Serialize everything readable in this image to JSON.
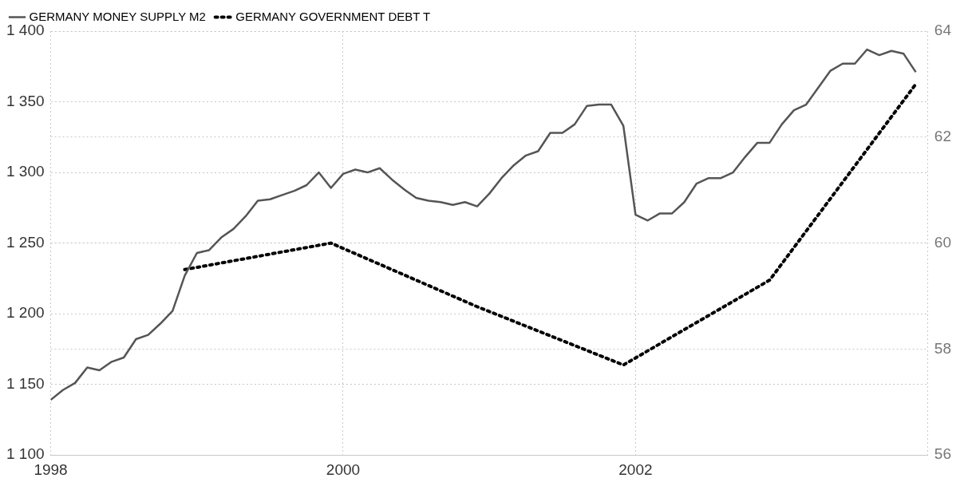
{
  "chart_data": {
    "type": "line",
    "xlim": [
      "1998",
      "2004"
    ],
    "xticks": [
      "1998",
      "2000",
      "2002",
      {
        "value": "2004",
        "label": null
      }
    ],
    "ylim": [
      1100,
      1400
    ],
    "yticks": [
      {
        "value": 1100,
        "label": "1 100"
      },
      {
        "value": 1150,
        "label": "1 150"
      },
      {
        "value": 1200,
        "label": "1 200"
      },
      {
        "value": 1250,
        "label": "1 250"
      },
      {
        "value": 1300,
        "label": "1 300"
      },
      {
        "value": 1350,
        "label": "1 350"
      },
      {
        "value": 1400,
        "label": "1 400"
      }
    ],
    "y2lim": [
      56,
      64
    ],
    "y2ticks": [
      56,
      58,
      60,
      62,
      64
    ],
    "grid": true,
    "legend": "top left",
    "marker": "none",
    "series": [
      {
        "name": "GERMANY MONEY SUPPLY M2",
        "color": "#555555",
        "line_style": "solid",
        "x": [
          "1998-01",
          "1998-02",
          "1998-03",
          "1998-04",
          "1998-05",
          "1998-06",
          "1998-07",
          "1998-08",
          "1998-09",
          "1998-10",
          "1998-11",
          "1998-12",
          "1999-01",
          "1999-02",
          "1999-03",
          "1999-04",
          "1999-05",
          "1999-06",
          "1999-07",
          "1999-08",
          "1999-09",
          "1999-10",
          "1999-11",
          "1999-12",
          "2000-01",
          "2000-02",
          "2000-03",
          "2000-04",
          "2000-05",
          "2000-06",
          "2000-07",
          "2000-08",
          "2000-09",
          "2000-10",
          "2000-11",
          "2000-12",
          "2001-01",
          "2001-02",
          "2001-03",
          "2001-04",
          "2001-05",
          "2001-06",
          "2001-07",
          "2001-08",
          "2001-09",
          "2001-10",
          "2001-11",
          "2001-12",
          "2002-01",
          "2002-02",
          "2002-03",
          "2002-04",
          "2002-05",
          "2002-06",
          "2002-07",
          "2002-08",
          "2002-09",
          "2002-10",
          "2002-11",
          "2002-12",
          "2003-01",
          "2003-02",
          "2003-03",
          "2003-04",
          "2003-05",
          "2003-06",
          "2003-07",
          "2003-08",
          "2003-09",
          "2003-10",
          "2003-11",
          "2003-12"
        ],
        "values": [
          1139,
          1146,
          1151,
          1162,
          1160,
          1166,
          1169,
          1182,
          1185,
          1193,
          1202,
          1227,
          1243,
          1245,
          1254,
          1260,
          1269,
          1280,
          1281,
          1284,
          1287,
          1291,
          1300,
          1289,
          1299,
          1302,
          1300,
          1303,
          1295,
          1288,
          1282,
          1280,
          1279,
          1277,
          1279,
          1276,
          1285,
          1296,
          1305,
          1312,
          1315,
          1328,
          1328,
          1334,
          1347,
          1348,
          1348,
          1333,
          1270,
          1266,
          1271,
          1271,
          1279,
          1292,
          1296,
          1296,
          1300,
          1311,
          1321,
          1321,
          1334,
          1344,
          1348,
          1360,
          1372,
          1377,
          1377,
          1387,
          1383,
          1386,
          1384,
          1371
        ]
      },
      {
        "name": "GERMANY GOVERNMENT DEBT T",
        "color": "#000000",
        "line_style": "dotted",
        "axis": "y2",
        "x": [
          "1998-12",
          "1999-12",
          "2000-12",
          "2001-12",
          "2002-12",
          "2003-12"
        ],
        "values": [
          59.5,
          60.0,
          58.8,
          57.7,
          59.3,
          63.0
        ]
      }
    ]
  }
}
